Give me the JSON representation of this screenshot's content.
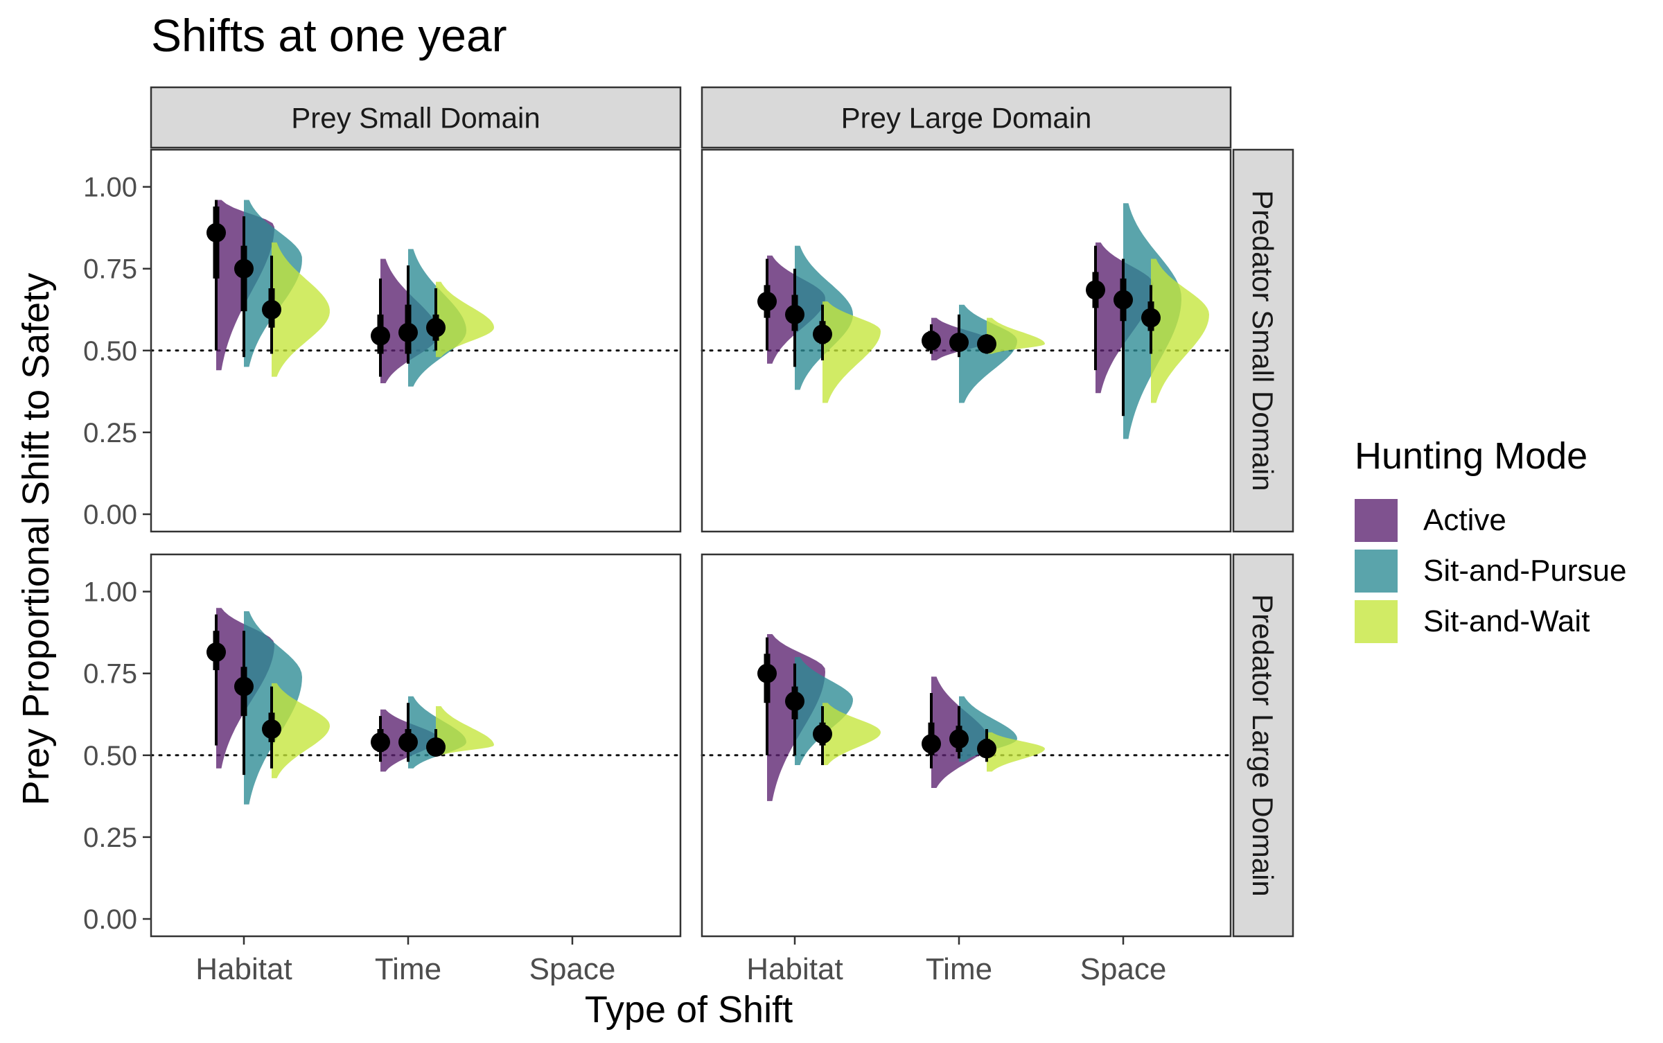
{
  "chart_data": {
    "type": "raincloud",
    "title": "Shifts at one year",
    "xlabel": "Type of Shift",
    "ylabel": "Prey Proportional Shift to Safety",
    "ylim": [
      0,
      1.05
    ],
    "y_ticks": [
      "0.00",
      "0.25",
      "0.50",
      "0.75",
      "1.00"
    ],
    "y_tick_values": [
      0,
      0.25,
      0.5,
      0.75,
      1.0
    ],
    "categories": [
      "Habitat",
      "Time",
      "Space"
    ],
    "reference_line": 0.5,
    "grid": false,
    "legend": {
      "title": "Hunting Mode",
      "placement": "right",
      "entries": [
        {
          "name": "Active",
          "color": "#5b2170"
        },
        {
          "name": "Sit-and-Pursue",
          "color": "#2b8a94"
        },
        {
          "name": "Sit-and-Wait",
          "color": "#c4e63a"
        }
      ]
    },
    "column_strips": [
      "Prey Small Domain",
      "Prey Large Domain"
    ],
    "row_strips": [
      "Predator Small Domain",
      "Predator Large Domain"
    ],
    "panels": [
      {
        "row": 0,
        "col": 0,
        "series": [
          {
            "name": "Active",
            "points": [
              {
                "category": "Habitat",
                "median": 0.86,
                "inner": [
                  0.72,
                  0.94
                ],
                "outer": [
                  0.5,
                  0.96
                ],
                "density_range": [
                  0.44,
                  0.96
                ],
                "mode": 0.88
              },
              {
                "category": "Time",
                "median": 0.545,
                "inner": [
                  0.49,
                  0.61
                ],
                "outer": [
                  0.42,
                  0.72
                ],
                "density_range": [
                  0.4,
                  0.78
                ],
                "mode": 0.55
              },
              {
                "category": "Space",
                "median": null
              }
            ]
          },
          {
            "name": "Sit-and-Pursue",
            "points": [
              {
                "category": "Habitat",
                "median": 0.75,
                "inner": [
                  0.62,
                  0.82
                ],
                "outer": [
                  0.48,
                  0.91
                ],
                "density_range": [
                  0.45,
                  0.96
                ],
                "mode": 0.78
              },
              {
                "category": "Time",
                "median": 0.555,
                "inner": [
                  0.49,
                  0.64
                ],
                "outer": [
                  0.46,
                  0.76
                ],
                "density_range": [
                  0.39,
                  0.81
                ],
                "mode": 0.56
              },
              {
                "category": "Space",
                "median": null
              }
            ]
          },
          {
            "name": "Sit-and-Wait",
            "points": [
              {
                "category": "Habitat",
                "median": 0.625,
                "inner": [
                  0.57,
                  0.69
                ],
                "outer": [
                  0.49,
                  0.79
                ],
                "density_range": [
                  0.42,
                  0.83
                ],
                "mode": 0.62
              },
              {
                "category": "Time",
                "median": 0.57,
                "inner": [
                  0.53,
                  0.61
                ],
                "outer": [
                  0.5,
                  0.69
                ],
                "density_range": [
                  0.48,
                  0.71
                ],
                "mode": 0.57
              },
              {
                "category": "Space",
                "median": null
              }
            ]
          }
        ]
      },
      {
        "row": 0,
        "col": 1,
        "series": [
          {
            "name": "Active",
            "points": [
              {
                "category": "Habitat",
                "median": 0.65,
                "inner": [
                  0.6,
                  0.7
                ],
                "outer": [
                  0.5,
                  0.78
                ],
                "density_range": [
                  0.46,
                  0.79
                ],
                "mode": 0.66
              },
              {
                "category": "Time",
                "median": 0.53,
                "inner": [
                  0.51,
                  0.56
                ],
                "outer": [
                  0.49,
                  0.58
                ],
                "density_range": [
                  0.47,
                  0.6
                ],
                "mode": 0.53
              },
              {
                "category": "Space",
                "median": 0.685,
                "inner": [
                  0.63,
                  0.74
                ],
                "outer": [
                  0.44,
                  0.82
                ],
                "density_range": [
                  0.37,
                  0.83
                ],
                "mode": 0.7
              }
            ]
          },
          {
            "name": "Sit-and-Pursue",
            "points": [
              {
                "category": "Habitat",
                "median": 0.61,
                "inner": [
                  0.56,
                  0.67
                ],
                "outer": [
                  0.45,
                  0.75
                ],
                "density_range": [
                  0.38,
                  0.82
                ],
                "mode": 0.61
              },
              {
                "category": "Time",
                "median": 0.525,
                "inner": [
                  0.5,
                  0.55
                ],
                "outer": [
                  0.48,
                  0.61
                ],
                "density_range": [
                  0.34,
                  0.64
                ],
                "mode": 0.53
              },
              {
                "category": "Space",
                "median": 0.655,
                "inner": [
                  0.59,
                  0.72
                ],
                "outer": [
                  0.3,
                  0.78
                ],
                "density_range": [
                  0.23,
                  0.95
                ],
                "mode": 0.66
              }
            ]
          },
          {
            "name": "Sit-and-Wait",
            "points": [
              {
                "category": "Habitat",
                "median": 0.55,
                "inner": [
                  0.52,
                  0.59
                ],
                "outer": [
                  0.47,
                  0.64
                ],
                "density_range": [
                  0.34,
                  0.65
                ],
                "mode": 0.56
              },
              {
                "category": "Time",
                "median": 0.52,
                "inner": [
                  0.5,
                  0.54
                ],
                "outer": [
                  0.49,
                  0.55
                ],
                "density_range": [
                  0.49,
                  0.6
                ],
                "mode": 0.52
              },
              {
                "category": "Space",
                "median": 0.6,
                "inner": [
                  0.56,
                  0.65
                ],
                "outer": [
                  0.49,
                  0.7
                ],
                "density_range": [
                  0.34,
                  0.78
                ],
                "mode": 0.61
              }
            ]
          }
        ]
      },
      {
        "row": 1,
        "col": 0,
        "series": [
          {
            "name": "Active",
            "points": [
              {
                "category": "Habitat",
                "median": 0.815,
                "inner": [
                  0.76,
                  0.88
                ],
                "outer": [
                  0.53,
                  0.93
                ],
                "density_range": [
                  0.46,
                  0.95
                ],
                "mode": 0.84
              },
              {
                "category": "Time",
                "median": 0.54,
                "inner": [
                  0.51,
                  0.58
                ],
                "outer": [
                  0.48,
                  0.62
                ],
                "density_range": [
                  0.45,
                  0.64
                ],
                "mode": 0.55
              },
              {
                "category": "Space",
                "median": null
              }
            ]
          },
          {
            "name": "Sit-and-Pursue",
            "points": [
              {
                "category": "Habitat",
                "median": 0.71,
                "inner": [
                  0.62,
                  0.77
                ],
                "outer": [
                  0.44,
                  0.88
                ],
                "density_range": [
                  0.35,
                  0.94
                ],
                "mode": 0.74
              },
              {
                "category": "Time",
                "median": 0.54,
                "inner": [
                  0.51,
                  0.58
                ],
                "outer": [
                  0.48,
                  0.66
                ],
                "density_range": [
                  0.46,
                  0.68
                ],
                "mode": 0.54
              },
              {
                "category": "Space",
                "median": null
              }
            ]
          },
          {
            "name": "Sit-and-Wait",
            "points": [
              {
                "category": "Habitat",
                "median": 0.58,
                "inner": [
                  0.54,
                  0.63
                ],
                "outer": [
                  0.46,
                  0.71
                ],
                "density_range": [
                  0.43,
                  0.72
                ],
                "mode": 0.59
              },
              {
                "category": "Time",
                "median": 0.525,
                "inner": [
                  0.51,
                  0.55
                ],
                "outer": [
                  0.5,
                  0.58
                ],
                "density_range": [
                  0.5,
                  0.65
                ],
                "mode": 0.53
              },
              {
                "category": "Space",
                "median": null
              }
            ]
          }
        ]
      },
      {
        "row": 1,
        "col": 1,
        "series": [
          {
            "name": "Active",
            "points": [
              {
                "category": "Habitat",
                "median": 0.75,
                "inner": [
                  0.66,
                  0.81
                ],
                "outer": [
                  0.5,
                  0.86
                ],
                "density_range": [
                  0.36,
                  0.87
                ],
                "mode": 0.76
              },
              {
                "category": "Time",
                "median": 0.535,
                "inner": [
                  0.5,
                  0.6
                ],
                "outer": [
                  0.46,
                  0.69
                ],
                "density_range": [
                  0.4,
                  0.74
                ],
                "mode": 0.54
              },
              {
                "category": "Space",
                "median": null
              }
            ]
          },
          {
            "name": "Sit-and-Pursue",
            "points": [
              {
                "category": "Habitat",
                "median": 0.665,
                "inner": [
                  0.61,
                  0.71
                ],
                "outer": [
                  0.5,
                  0.78
                ],
                "density_range": [
                  0.47,
                  0.8
                ],
                "mode": 0.67
              },
              {
                "category": "Time",
                "median": 0.55,
                "inner": [
                  0.51,
                  0.59
                ],
                "outer": [
                  0.49,
                  0.65
                ],
                "density_range": [
                  0.48,
                  0.68
                ],
                "mode": 0.55
              },
              {
                "category": "Space",
                "median": null
              }
            ]
          },
          {
            "name": "Sit-and-Wait",
            "points": [
              {
                "category": "Habitat",
                "median": 0.565,
                "inner": [
                  0.53,
                  0.6
                ],
                "outer": [
                  0.47,
                  0.65
                ],
                "density_range": [
                  0.47,
                  0.66
                ],
                "mode": 0.57
              },
              {
                "category": "Time",
                "median": 0.52,
                "inner": [
                  0.5,
                  0.55
                ],
                "outer": [
                  0.48,
                  0.58
                ],
                "density_range": [
                  0.45,
                  0.57
                ],
                "mode": 0.52
              },
              {
                "category": "Space",
                "median": null
              }
            ]
          }
        ]
      }
    ]
  }
}
